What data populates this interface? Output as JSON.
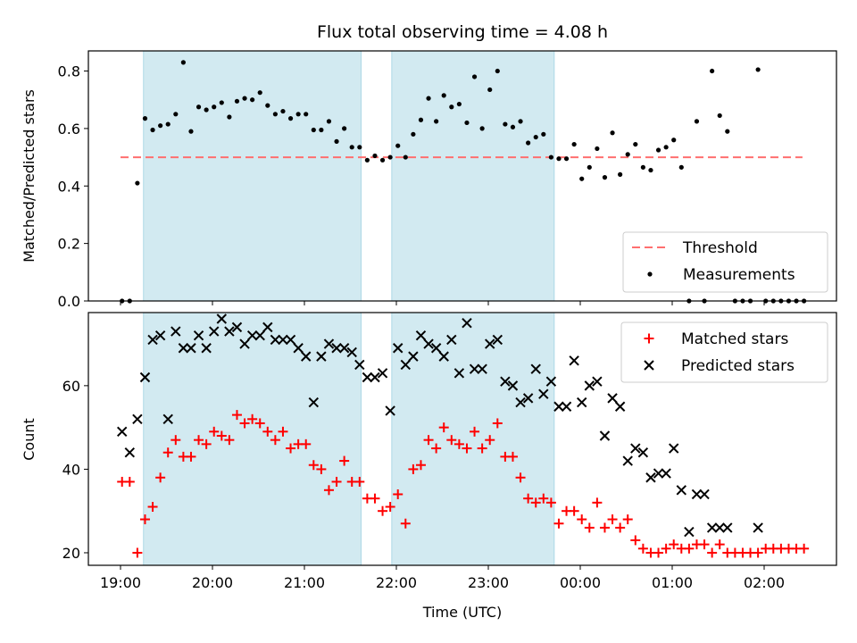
{
  "figure": {
    "title": "Flux total observing time = 4.08 h"
  },
  "colors": {
    "shade": "#add8e6",
    "threshold": "#ff6f6f",
    "measurement": "#000000",
    "matched": "#ff0000",
    "predicted": "#000000"
  },
  "chart_data": [
    {
      "type": "scatter",
      "ylabel": "Matched/Predicted stars",
      "xlabel": "",
      "ylim": [
        0,
        0.87
      ],
      "yticks": [
        "0.0",
        "0.2",
        "0.4",
        "0.6",
        "0.8"
      ],
      "legend": {
        "position": "lower-right",
        "entries": [
          "Threshold",
          "Measurements"
        ]
      },
      "threshold": {
        "name": "Threshold",
        "value": 0.5,
        "x_start": "19:00",
        "x_end": "02:25"
      },
      "shaded_intervals": [
        [
          "19:15",
          "21:37"
        ],
        [
          "21:57",
          "23:43"
        ]
      ],
      "series": [
        {
          "name": "Measurements",
          "x": [
            "19:01",
            "19:06",
            "19:11",
            "19:16",
            "19:21",
            "19:26",
            "19:31",
            "19:36",
            "19:41",
            "19:46",
            "19:51",
            "19:56",
            "20:01",
            "20:06",
            "20:11",
            "20:16",
            "20:21",
            "20:26",
            "20:31",
            "20:36",
            "20:41",
            "20:46",
            "20:51",
            "20:56",
            "21:01",
            "21:06",
            "21:11",
            "21:16",
            "21:21",
            "21:26",
            "21:31",
            "21:36",
            "21:41",
            "21:46",
            "21:51",
            "21:56",
            "22:01",
            "22:06",
            "22:11",
            "22:16",
            "22:21",
            "22:26",
            "22:31",
            "22:36",
            "22:41",
            "22:46",
            "22:51",
            "22:56",
            "23:01",
            "23:06",
            "23:11",
            "23:16",
            "23:21",
            "23:26",
            "23:31",
            "23:36",
            "23:41",
            "23:46",
            "23:51",
            "23:56",
            "00:01",
            "00:06",
            "00:11",
            "00:16",
            "00:21",
            "00:26",
            "00:31",
            "00:36",
            "00:41",
            "00:46",
            "00:51",
            "00:56",
            "01:01",
            "01:06",
            "01:11",
            "01:16",
            "01:21",
            "01:26",
            "01:31",
            "01:36",
            "01:41",
            "01:46",
            "01:51",
            "01:56",
            "02:01",
            "02:06",
            "02:11",
            "02:16",
            "02:21",
            "02:26"
          ],
          "y": [
            0.0,
            0.0,
            0.41,
            0.635,
            0.595,
            0.61,
            0.615,
            0.65,
            0.83,
            0.59,
            0.675,
            0.665,
            0.675,
            0.69,
            0.64,
            0.695,
            0.705,
            0.7,
            0.725,
            0.68,
            0.65,
            0.66,
            0.635,
            0.65,
            0.65,
            0.595,
            0.595,
            0.625,
            0.555,
            0.6,
            0.535,
            0.535,
            0.49,
            0.505,
            0.49,
            0.5,
            0.54,
            0.5,
            0.58,
            0.63,
            0.705,
            0.625,
            0.715,
            0.675,
            0.685,
            0.62,
            0.78,
            0.6,
            0.735,
            0.8,
            0.615,
            0.605,
            0.625,
            0.55,
            0.57,
            0.58,
            0.5,
            0.495,
            0.495,
            0.545,
            0.425,
            0.465,
            0.53,
            0.43,
            0.585,
            0.44,
            0.51,
            0.545,
            0.465,
            0.455,
            0.525,
            0.535,
            0.56,
            0.465,
            0.0,
            0.625,
            0.0,
            0.8,
            0.645,
            0.59,
            0.0,
            0.0,
            0.0,
            0.805,
            0.0,
            0.0,
            0.0,
            0.0,
            0.0,
            0.0
          ]
        }
      ]
    },
    {
      "type": "scatter",
      "xlabel": "Time (UTC)",
      "ylabel": "Count",
      "ylim": [
        17,
        77.5
      ],
      "yticks": [
        "20",
        "40",
        "60"
      ],
      "xticks": [
        "19:00",
        "20:00",
        "21:00",
        "22:00",
        "23:00",
        "00:00",
        "01:00",
        "02:00"
      ],
      "legend": {
        "position": "upper-right",
        "entries": [
          "Matched stars",
          "Predicted stars"
        ]
      },
      "shaded_intervals": [
        [
          "19:15",
          "21:37"
        ],
        [
          "21:57",
          "23:43"
        ]
      ],
      "series": [
        {
          "name": "Matched stars",
          "x": [
            "19:01",
            "19:06",
            "19:11",
            "19:16",
            "19:21",
            "19:26",
            "19:31",
            "19:36",
            "19:41",
            "19:46",
            "19:51",
            "19:56",
            "20:01",
            "20:06",
            "20:11",
            "20:16",
            "20:21",
            "20:26",
            "20:31",
            "20:36",
            "20:41",
            "20:46",
            "20:51",
            "20:56",
            "21:01",
            "21:06",
            "21:11",
            "21:16",
            "21:21",
            "21:26",
            "21:31",
            "21:36",
            "21:41",
            "21:46",
            "21:51",
            "21:56",
            "22:01",
            "22:06",
            "22:11",
            "22:16",
            "22:21",
            "22:26",
            "22:31",
            "22:36",
            "22:41",
            "22:46",
            "22:51",
            "22:56",
            "23:01",
            "23:06",
            "23:11",
            "23:16",
            "23:21",
            "23:26",
            "23:31",
            "23:36",
            "23:41",
            "23:46",
            "23:51",
            "23:56",
            "00:01",
            "00:06",
            "00:11",
            "00:16",
            "00:21",
            "00:26",
            "00:31",
            "00:36",
            "00:41",
            "00:46",
            "00:51",
            "00:56",
            "01:01",
            "01:06",
            "01:11",
            "01:16",
            "01:21",
            "01:26",
            "01:31",
            "01:36",
            "01:41",
            "01:46",
            "01:51",
            "01:56",
            "02:01",
            "02:06",
            "02:11",
            "02:16",
            "02:21",
            "02:26"
          ],
          "y": [
            37,
            37,
            20,
            28,
            31,
            38,
            44,
            47,
            43,
            43,
            47,
            46,
            49,
            48,
            47,
            53,
            51,
            52,
            51,
            49,
            47,
            49,
            45,
            46,
            46,
            41,
            40,
            35,
            37,
            42,
            37,
            37,
            33,
            33,
            30,
            31,
            34,
            27,
            40,
            41,
            47,
            45,
            50,
            47,
            46,
            45,
            49,
            45,
            47,
            51,
            43,
            43,
            38,
            33,
            32,
            33,
            32,
            27,
            30,
            30,
            28,
            26,
            32,
            26,
            28,
            26,
            28,
            23,
            21,
            20,
            20,
            21,
            22,
            21,
            21,
            22,
            22,
            20,
            22,
            20,
            20,
            20,
            20,
            20,
            21,
            21,
            21,
            21,
            21,
            21
          ]
        },
        {
          "name": "Predicted stars",
          "x": [
            "19:01",
            "19:06",
            "19:11",
            "19:16",
            "19:21",
            "19:26",
            "19:31",
            "19:36",
            "19:41",
            "19:46",
            "19:51",
            "19:56",
            "20:01",
            "20:06",
            "20:11",
            "20:16",
            "20:21",
            "20:26",
            "20:31",
            "20:36",
            "20:41",
            "20:46",
            "20:51",
            "20:56",
            "21:01",
            "21:06",
            "21:11",
            "21:16",
            "21:21",
            "21:26",
            "21:31",
            "21:36",
            "21:41",
            "21:46",
            "21:51",
            "21:56",
            "22:01",
            "22:06",
            "22:11",
            "22:16",
            "22:21",
            "22:26",
            "22:31",
            "22:36",
            "22:41",
            "22:46",
            "22:51",
            "22:56",
            "23:01",
            "23:06",
            "23:11",
            "23:16",
            "23:21",
            "23:26",
            "23:31",
            "23:36",
            "23:41",
            "23:46",
            "23:51",
            "23:56",
            "00:01",
            "00:06",
            "00:11",
            "00:16",
            "00:21",
            "00:26",
            "00:31",
            "00:36",
            "00:41",
            "00:46",
            "00:51",
            "00:56",
            "01:01",
            "01:06",
            "01:11",
            "01:16",
            "01:21",
            "01:26",
            "01:31",
            "01:36",
            "01:56"
          ],
          "y": [
            49,
            44,
            52,
            62,
            71,
            72,
            52,
            73,
            69,
            69,
            72,
            69,
            73,
            76,
            73,
            74,
            70,
            72,
            72,
            74,
            71,
            71,
            71,
            69,
            67,
            56,
            67,
            70,
            69,
            69,
            68,
            65,
            62,
            62,
            63,
            54,
            69,
            65,
            67,
            72,
            70,
            69,
            67,
            71,
            63,
            75,
            64,
            64,
            70,
            71,
            61,
            60,
            56,
            57,
            64,
            58,
            61,
            55,
            55,
            66,
            56,
            60,
            61,
            48,
            57,
            55,
            42,
            45,
            44,
            38,
            39,
            39,
            45,
            35,
            25,
            34,
            34,
            26,
            26,
            26,
            26
          ]
        }
      ]
    }
  ]
}
